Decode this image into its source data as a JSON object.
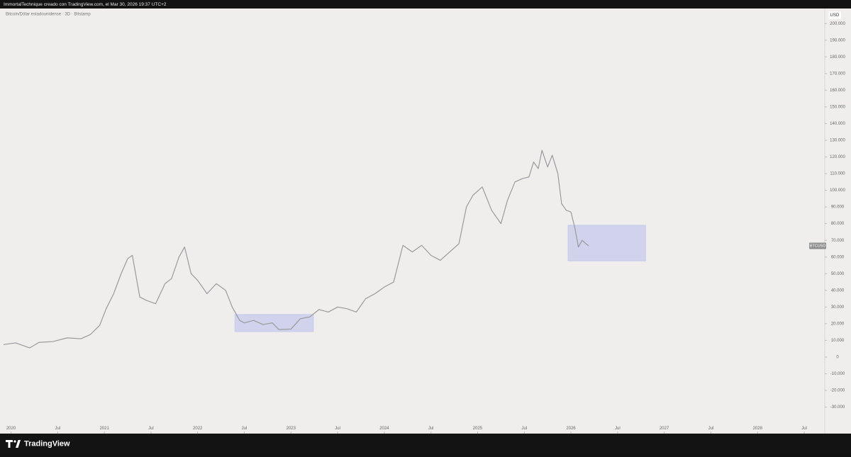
{
  "header": {
    "text": "ImmortalTechnique creado con TradingView.com, el Mar 30, 2026 19:37 UTC+2"
  },
  "footer": {
    "brand": "TradingView"
  },
  "chart_data": {
    "type": "line",
    "title": "Bitcoin/Dólar estadounidense · 3D · Bitstamp",
    "y_axis_unit": "USD",
    "last_label": "BTCUSD",
    "x": [
      2019.92,
      2020.05,
      2020.2,
      2020.3,
      2020.45,
      2020.6,
      2020.75,
      2020.85,
      2020.95,
      2021.02,
      2021.1,
      2021.18,
      2021.25,
      2021.3,
      2021.38,
      2021.45,
      2021.55,
      2021.65,
      2021.72,
      2021.8,
      2021.86,
      2021.93,
      2022.0,
      2022.1,
      2022.2,
      2022.3,
      2022.37,
      2022.45,
      2022.5,
      2022.6,
      2022.7,
      2022.8,
      2022.87,
      2023.0,
      2023.1,
      2023.2,
      2023.3,
      2023.4,
      2023.5,
      2023.6,
      2023.7,
      2023.8,
      2023.9,
      2024.0,
      2024.1,
      2024.2,
      2024.3,
      2024.4,
      2024.5,
      2024.6,
      2024.7,
      2024.8,
      2024.88,
      2024.95,
      2025.05,
      2025.15,
      2025.25,
      2025.32,
      2025.4,
      2025.48,
      2025.55,
      2025.6,
      2025.65,
      2025.69,
      2025.75,
      2025.8,
      2025.86,
      2025.9,
      2025.95,
      2026.0,
      2026.04,
      2026.08,
      2026.12,
      2026.16,
      2026.19
    ],
    "series": [
      {
        "name": "BTCUSD",
        "color": "#9a9a9e",
        "values": [
          7500,
          8500,
          5500,
          8800,
          9300,
          11500,
          11000,
          13500,
          19000,
          29000,
          38000,
          50000,
          59000,
          61000,
          36000,
          34000,
          32000,
          44000,
          47000,
          60000,
          66000,
          50000,
          46000,
          38000,
          44000,
          40000,
          30000,
          22000,
          20500,
          22000,
          19500,
          20500,
          16500,
          16800,
          23000,
          24000,
          28500,
          27000,
          30000,
          29000,
          27000,
          35000,
          38000,
          42000,
          45000,
          67000,
          63000,
          67000,
          61000,
          58000,
          63000,
          68000,
          90000,
          97000,
          102000,
          88000,
          80000,
          94000,
          105000,
          107000,
          108000,
          117000,
          113000,
          124000,
          114000,
          121000,
          110000,
          92000,
          88000,
          87000,
          78000,
          66000,
          70000,
          68000,
          66700
        ]
      }
    ],
    "zones": [
      {
        "x": [
          2022.4,
          2023.24
        ],
        "y": [
          15300,
          25500
        ],
        "color": "#c5cae9"
      },
      {
        "x": [
          2025.97,
          2026.8
        ],
        "y": [
          57700,
          79000
        ],
        "color": "#c5cae9"
      }
    ],
    "xlim": [
      2019.92,
      2028.72
    ],
    "ylim": [
      -42500,
      209000
    ],
    "xticks": [
      {
        "value": 2020,
        "label": "2020"
      },
      {
        "value": 2020.5,
        "label": "Jul"
      },
      {
        "value": 2021,
        "label": "2021"
      },
      {
        "value": 2021.5,
        "label": "Jul"
      },
      {
        "value": 2022,
        "label": "2022"
      },
      {
        "value": 2022.5,
        "label": "Jul"
      },
      {
        "value": 2023,
        "label": "2023"
      },
      {
        "value": 2023.5,
        "label": "Jul"
      },
      {
        "value": 2024,
        "label": "2024"
      },
      {
        "value": 2024.5,
        "label": "Jul"
      },
      {
        "value": 2025,
        "label": "2025"
      },
      {
        "value": 2025.5,
        "label": "Jul"
      },
      {
        "value": 2026,
        "label": "2026"
      },
      {
        "value": 2026.5,
        "label": "Jul"
      },
      {
        "value": 2027,
        "label": "2027"
      },
      {
        "value": 2027.5,
        "label": "Jul"
      },
      {
        "value": 2028,
        "label": "2028"
      },
      {
        "value": 2028.5,
        "label": "Jul"
      }
    ],
    "yticks": [
      {
        "value": 200000,
        "label": "200.000"
      },
      {
        "value": 190000,
        "label": "190.000"
      },
      {
        "value": 180000,
        "label": "180.000"
      },
      {
        "value": 170000,
        "label": "170.000"
      },
      {
        "value": 160000,
        "label": "160.000"
      },
      {
        "value": 150000,
        "label": "150.000"
      },
      {
        "value": 140000,
        "label": "140.000"
      },
      {
        "value": 130000,
        "label": "130.000"
      },
      {
        "value": 120000,
        "label": "120.000"
      },
      {
        "value": 110000,
        "label": "110.000"
      },
      {
        "value": 100000,
        "label": "100.000"
      },
      {
        "value": 90000,
        "label": "90.000"
      },
      {
        "value": 80000,
        "label": "80.000"
      },
      {
        "value": 70000,
        "label": "70.000"
      },
      {
        "value": 60000,
        "label": "60.000"
      },
      {
        "value": 50000,
        "label": "50.000"
      },
      {
        "value": 40000,
        "label": "40.000"
      },
      {
        "value": 30000,
        "label": "30.000"
      },
      {
        "value": 20000,
        "label": "20.000"
      },
      {
        "value": 10000,
        "label": "10.000"
      },
      0,
      {
        "value": -10000,
        "label": "-10.000"
      },
      {
        "value": -20000,
        "label": "-20.000"
      },
      {
        "value": -30000,
        "label": "-30.000"
      }
    ]
  }
}
